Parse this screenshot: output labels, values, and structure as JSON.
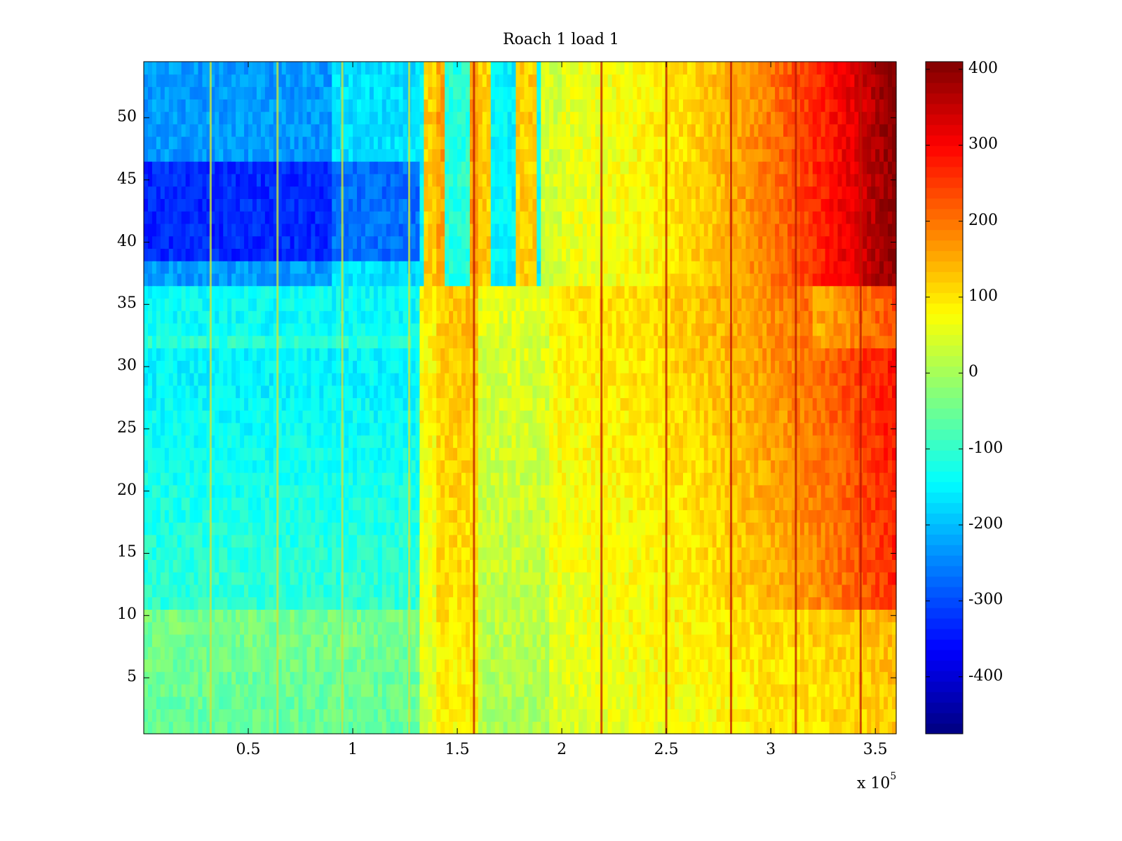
{
  "chart_data": {
    "type": "heatmap",
    "title": "Roach 1 load 1",
    "xlabel": "",
    "ylabel": "",
    "x_multiplier_label": "x 10",
    "x_multiplier_exponent": "5",
    "xlim": [
      0,
      3.6
    ],
    "ylim": [
      0.5,
      54.5
    ],
    "x_ticks": [
      0.5,
      1,
      1.5,
      2,
      2.5,
      3,
      3.5
    ],
    "x_tick_labels": [
      "0.5",
      "1",
      "1.5",
      "2",
      "2.5",
      "3",
      "3.5"
    ],
    "y_ticks": [
      5,
      10,
      15,
      20,
      25,
      30,
      35,
      40,
      45,
      50
    ],
    "y_tick_labels": [
      "5",
      "10",
      "15",
      "20",
      "25",
      "30",
      "35",
      "40",
      "45",
      "50"
    ],
    "colorbar": {
      "colormap": "jet",
      "clim": [
        -475,
        410
      ],
      "ticks": [
        400,
        300,
        200,
        100,
        0,
        -100,
        -200,
        -300,
        -400
      ],
      "tick_labels": [
        "400",
        "300",
        "200",
        "100",
        "0",
        "-100",
        "-200",
        "-300",
        "-400"
      ]
    },
    "grid": false,
    "x_segments": [
      {
        "x_range": [
          0,
          1.33
        ],
        "description_values": "rows 1-10 ≈ -40 to -70, rows 11-27 ≈ -100 to -140, rows 28-36 ≈ -150 to -180, rows 37-54 ≈ -200 to -400"
      },
      {
        "x_range": [
          1.33,
          2.0
        ],
        "description_values": "rows 1-10 ≈ 20 to 80, rows 11-36 ≈ 40 to 120, rows 37-54 ≈ -200 to 200"
      },
      {
        "x_range": [
          2.0,
          3.6
        ],
        "description_values": "rows 1-10 ≈ 20 to 140, rows 11-36 ≈ 60 to 280, rows 37-54 ≈ 60 to 410"
      }
    ],
    "streak_x_positions": [
      0.32,
      0.64,
      0.95,
      1.27,
      1.58,
      2.19,
      2.5,
      2.81,
      3.12,
      3.43
    ]
  }
}
